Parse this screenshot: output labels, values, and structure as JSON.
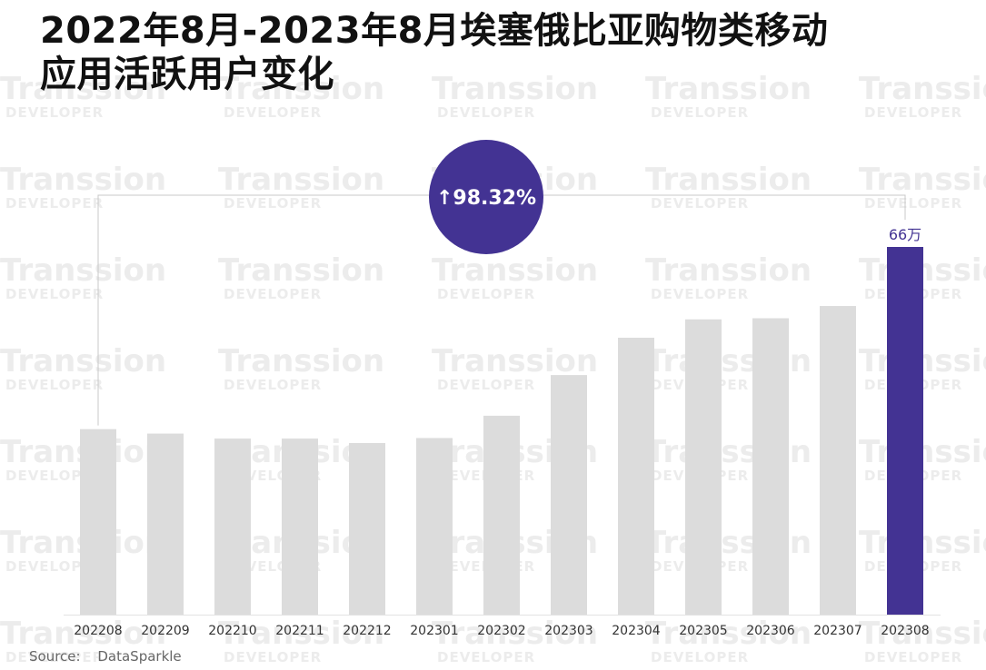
{
  "title_line1": "2022年8月-2023年8月埃塞俄比亚购物类移动",
  "title_line2": "应用活跃用户变化",
  "watermark": {
    "brand": "Transsion",
    "sub": "DEVELOPER"
  },
  "source": {
    "label": "Source:",
    "value": "DataSparkle"
  },
  "colors": {
    "bar": "#dcdcdc",
    "highlight": "#433393",
    "badge": "#433393",
    "bracket": "#c8c8c8"
  },
  "chart_data": {
    "type": "bar",
    "title": "2022年8月-2023年8月埃塞俄比亚购物类移动应用活跃用户变化",
    "xlabel": "",
    "ylabel": "",
    "unit": "万",
    "categories": [
      "202208",
      "202209",
      "202210",
      "202211",
      "202212",
      "202301",
      "202302",
      "202303",
      "202304",
      "202305",
      "202306",
      "202307",
      "202308"
    ],
    "values": [
      33.3,
      32.5,
      31.6,
      31.6,
      30.8,
      31.7,
      35.7,
      43.0,
      49.7,
      53.0,
      53.2,
      55.4,
      66
    ],
    "highlight_index": 12,
    "data_labels": {
      "12": "66万"
    },
    "ylim": [
      0,
      70
    ],
    "grid": false,
    "annotation": {
      "text": "↑98.32%",
      "from_index": 0,
      "to_index": 12
    }
  }
}
